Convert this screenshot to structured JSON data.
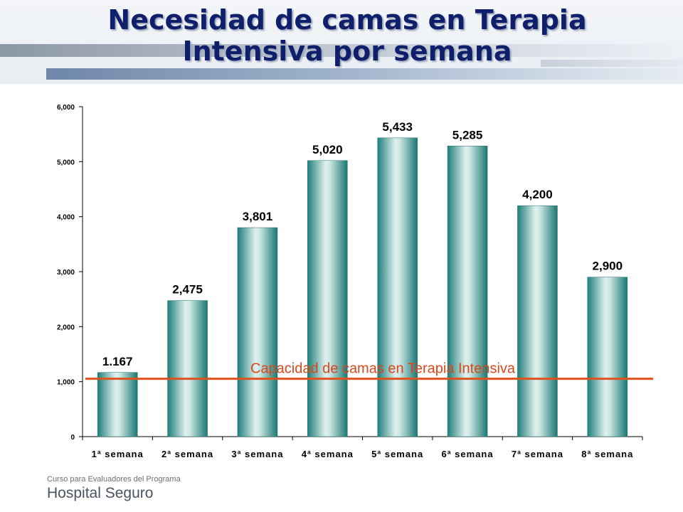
{
  "slide": {
    "title_line1": "Necesidad de camas en Terapia",
    "title_line2": "Intensiva por semana"
  },
  "chart_data": {
    "type": "bar",
    "title": "Necesidad de camas en Terapia Intensiva por semana",
    "categories": [
      "1ª semana",
      "2ª semana",
      "3ª semana",
      "4ª semana",
      "5ª semana",
      "6ª semana",
      "7ª semana",
      "8ª semana"
    ],
    "values": [
      1167,
      2475,
      3801,
      5020,
      5433,
      5285,
      4200,
      2900
    ],
    "value_labels": [
      "1.167",
      "2,475",
      "3,801",
      "5,020",
      "5,433",
      "5,285",
      "4,200",
      "2,900"
    ],
    "ylim": [
      0,
      6000
    ],
    "yticks": [
      0,
      1000,
      2000,
      3000,
      4000,
      5000,
      6000
    ],
    "ytick_labels": [
      "0",
      "1,000",
      "2,000",
      "3,000",
      "4,000",
      "5,000",
      "6,000"
    ],
    "xlabel": "",
    "ylabel": "",
    "grid": false,
    "bar_color": "#2a8a86",
    "reference_line": {
      "label": "Capacidad de camas en Terapia Intensiva",
      "value": 1000,
      "color": "#e0521d"
    }
  },
  "footer": {
    "line1": "Curso para Evaluadores del Programa",
    "line2": "Hospital Seguro"
  }
}
